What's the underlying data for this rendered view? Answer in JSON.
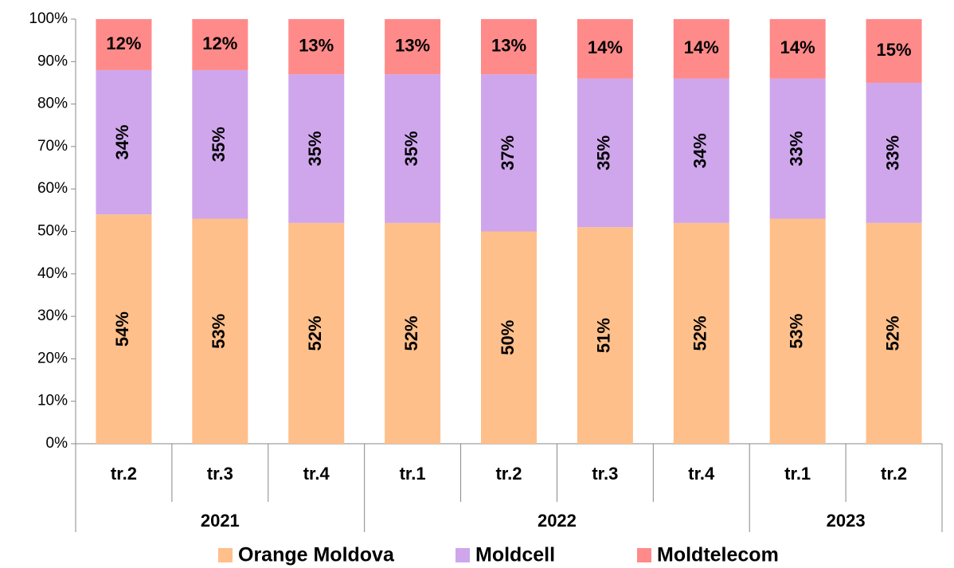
{
  "chart_data": {
    "type": "stacked_bar",
    "category_groups": [
      {
        "name": "2021",
        "categories": [
          "tr.2",
          "tr.3",
          "tr.4"
        ]
      },
      {
        "name": "2022",
        "categories": [
          "tr.1",
          "tr.2",
          "tr.3",
          "tr.4"
        ]
      },
      {
        "name": "2023",
        "categories": [
          "tr.1",
          "tr.2"
        ]
      }
    ],
    "series": [
      {
        "name": "Orange Moldova",
        "color": "#FFBF8A",
        "values": [
          54,
          53,
          52,
          52,
          50,
          51,
          52,
          53,
          52
        ],
        "value_labels": [
          "54%",
          "53%",
          "52%",
          "52%",
          "50%",
          "51%",
          "52%",
          "53%",
          "52%"
        ]
      },
      {
        "name": "Moldcell",
        "color": "#CFA6EC",
        "values": [
          34,
          35,
          35,
          35,
          37,
          35,
          34,
          33,
          33
        ],
        "value_labels": [
          "34%",
          "35%",
          "35%",
          "35%",
          "37%",
          "35%",
          "34%",
          "33%",
          "33%"
        ]
      },
      {
        "name": "Moldtelecom",
        "color": "#FF8A8A",
        "values": [
          12,
          12,
          13,
          13,
          13,
          14,
          14,
          14,
          15
        ],
        "value_labels": [
          "12%",
          "12%",
          "13%",
          "13%",
          "13%",
          "14%",
          "14%",
          "14%",
          "15%"
        ]
      }
    ],
    "ylim": [
      0,
      100
    ],
    "yticks": [
      {
        "value": 0,
        "label": "0%"
      },
      {
        "value": 10,
        "label": "10%"
      },
      {
        "value": 20,
        "label": "20%"
      },
      {
        "value": 30,
        "label": "30%"
      },
      {
        "value": 40,
        "label": "40%"
      },
      {
        "value": 50,
        "label": "50%"
      },
      {
        "value": 60,
        "label": "60%"
      },
      {
        "value": 70,
        "label": "70%"
      },
      {
        "value": 80,
        "label": "80%"
      },
      {
        "value": 90,
        "label": "90%"
      },
      {
        "value": 100,
        "label": "100%"
      }
    ],
    "legend": "bottom"
  }
}
